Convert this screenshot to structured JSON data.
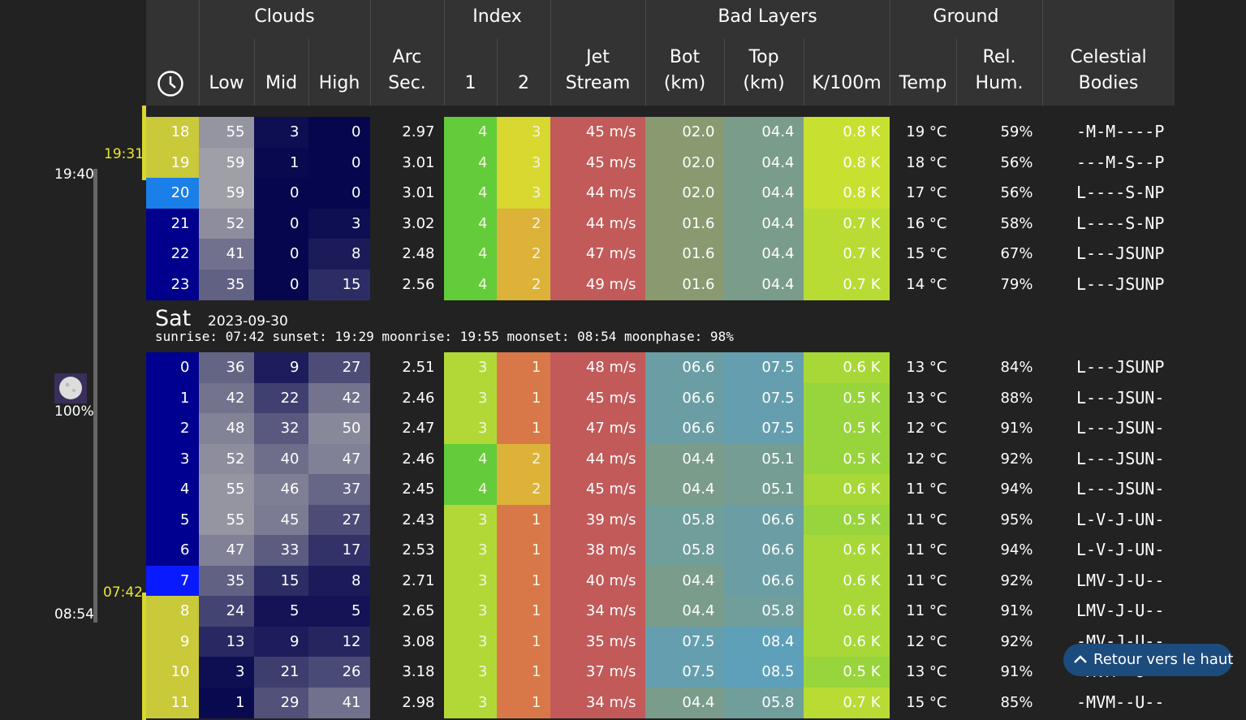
{
  "header": {
    "groups": [
      "Clouds",
      "Index",
      "Bad Layers",
      "Ground"
    ],
    "columns": [
      [
        "Low"
      ],
      [
        "Mid"
      ],
      [
        "High"
      ],
      [
        "Arc",
        "Sec."
      ],
      [
        "1"
      ],
      [
        "2"
      ],
      [
        "Jet",
        "Stream"
      ],
      [
        "Bot",
        "(km)"
      ],
      [
        "Top",
        "(km)"
      ],
      [
        "K/100m"
      ],
      [
        "Temp"
      ],
      [
        "Rel.",
        "Hum."
      ],
      [
        "Celestial",
        "Bodies"
      ]
    ]
  },
  "timeline": {
    "moonrise": "19:40",
    "sunset": "19:31",
    "moon_phase": "100%",
    "sunrise": "07:42",
    "moonset": "08:54"
  },
  "sections": [
    {
      "hour_colors": [
        "#c9c93a",
        "#c9c93a",
        "#1a7fe8",
        "#00008c",
        "#00008c",
        "#00008c"
      ],
      "rows": [
        [
          "18",
          "55",
          "3",
          "0",
          "2.97",
          "4",
          "3",
          "45 m/s",
          "02.0",
          "04.4",
          "0.8 K",
          "19 °C",
          "59%",
          "-M-M----P"
        ],
        [
          "19",
          "59",
          "1",
          "0",
          "3.01",
          "4",
          "3",
          "45 m/s",
          "02.0",
          "04.4",
          "0.8 K",
          "18 °C",
          "56%",
          "---M-S--P"
        ],
        [
          "20",
          "59",
          "0",
          "0",
          "3.01",
          "4",
          "3",
          "44 m/s",
          "02.0",
          "04.4",
          "0.8 K",
          "17 °C",
          "56%",
          "L----S-NP"
        ],
        [
          "21",
          "52",
          "0",
          "3",
          "3.02",
          "4",
          "2",
          "44 m/s",
          "01.6",
          "04.4",
          "0.7 K",
          "16 °C",
          "58%",
          "L----S-NP"
        ],
        [
          "22",
          "41",
          "0",
          "8",
          "2.48",
          "4",
          "2",
          "47 m/s",
          "01.6",
          "04.4",
          "0.7 K",
          "15 °C",
          "67%",
          "L---JSUNP"
        ],
        [
          "23",
          "35",
          "0",
          "15",
          "2.56",
          "4",
          "2",
          "49 m/s",
          "01.6",
          "04.4",
          "0.7 K",
          "14 °C",
          "79%",
          "L---JSUNP"
        ]
      ]
    },
    {
      "day": "Sat",
      "date": "2023-09-30",
      "info": "sunrise: 07:42 sunset: 19:29 moonrise: 19:55 moonset: 08:54 moonphase: 98%",
      "hour_colors": [
        "#000090",
        "#000090",
        "#000090",
        "#000090",
        "#000090",
        "#000090",
        "#000090",
        "#0a1aff",
        "#c9c93a",
        "#c9c93a",
        "#c9c93a",
        "#c9c93a"
      ],
      "rows": [
        [
          "0",
          "36",
          "9",
          "27",
          "2.51",
          "3",
          "1",
          "48 m/s",
          "06.6",
          "07.5",
          "0.6 K",
          "13 °C",
          "84%",
          "L---JSUNP"
        ],
        [
          "1",
          "42",
          "22",
          "42",
          "2.46",
          "3",
          "1",
          "45 m/s",
          "06.6",
          "07.5",
          "0.5 K",
          "13 °C",
          "88%",
          "L---JSUN-"
        ],
        [
          "2",
          "48",
          "32",
          "50",
          "2.47",
          "3",
          "1",
          "47 m/s",
          "06.6",
          "07.5",
          "0.5 K",
          "12 °C",
          "91%",
          "L---JSUN-"
        ],
        [
          "3",
          "52",
          "40",
          "47",
          "2.46",
          "4",
          "2",
          "44 m/s",
          "04.4",
          "05.1",
          "0.5 K",
          "12 °C",
          "92%",
          "L---JSUN-"
        ],
        [
          "4",
          "55",
          "46",
          "37",
          "2.45",
          "4",
          "2",
          "45 m/s",
          "04.4",
          "05.1",
          "0.6 K",
          "11 °C",
          "94%",
          "L---JSUN-"
        ],
        [
          "5",
          "55",
          "45",
          "27",
          "2.43",
          "3",
          "1",
          "39 m/s",
          "05.8",
          "06.6",
          "0.5 K",
          "11 °C",
          "95%",
          "L-V-J-UN-"
        ],
        [
          "6",
          "47",
          "33",
          "17",
          "2.53",
          "3",
          "1",
          "38 m/s",
          "05.8",
          "06.6",
          "0.6 K",
          "11 °C",
          "94%",
          "L-V-J-UN-"
        ],
        [
          "7",
          "35",
          "15",
          "8",
          "2.71",
          "3",
          "1",
          "40 m/s",
          "04.4",
          "06.6",
          "0.6 K",
          "11 °C",
          "92%",
          "LMV-J-U--"
        ],
        [
          "8",
          "24",
          "5",
          "5",
          "2.65",
          "3",
          "1",
          "34 m/s",
          "04.4",
          "05.8",
          "0.6 K",
          "11 °C",
          "91%",
          "LMV-J-U--"
        ],
        [
          "9",
          "13",
          "9",
          "12",
          "3.08",
          "3",
          "1",
          "35 m/s",
          "07.5",
          "08.4",
          "0.6 K",
          "12 °C",
          "92%",
          "-MV-J-U--"
        ],
        [
          "10",
          "3",
          "21",
          "26",
          "3.18",
          "3",
          "1",
          "37 m/s",
          "07.5",
          "08.5",
          "0.5 K",
          "13 °C",
          "91%",
          "-MVM--U--"
        ],
        [
          "11",
          "1",
          "29",
          "41",
          "2.98",
          "3",
          "1",
          "34 m/s",
          "04.4",
          "05.8",
          "0.7 K",
          "15 °C",
          "85%",
          "-MVM--U--"
        ]
      ]
    }
  ],
  "button": "Retour vers le haut"
}
